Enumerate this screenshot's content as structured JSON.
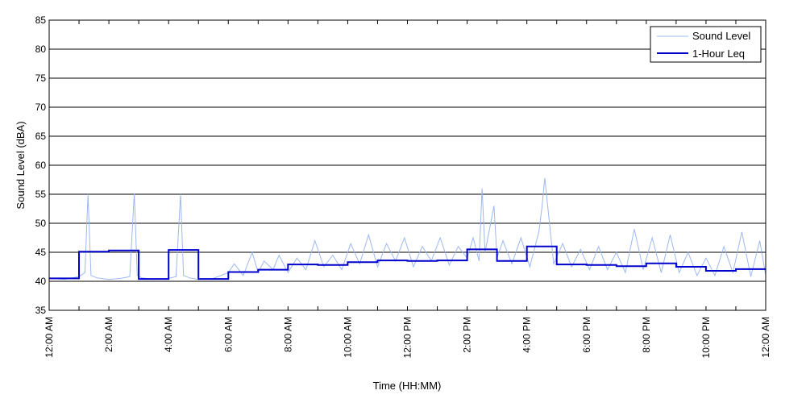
{
  "chart_data": {
    "type": "line",
    "title": "",
    "xlabel": "Time (HH:MM)",
    "ylabel": "Sound Level (dBA)",
    "xlim": [
      0,
      24
    ],
    "ylim": [
      35,
      85
    ],
    "yticks": [
      35,
      40,
      45,
      50,
      55,
      60,
      65,
      70,
      75,
      80,
      85
    ],
    "xticks": [
      0,
      1,
      2,
      3,
      4,
      5,
      6,
      7,
      8,
      9,
      10,
      11,
      12,
      13,
      14,
      15,
      16,
      17,
      18,
      19,
      20,
      21,
      22,
      23,
      24
    ],
    "xtick_labels": [
      "12:00 AM",
      "",
      "2:00 AM",
      "",
      "4:00 AM",
      "",
      "6:00 AM",
      "",
      "8:00 AM",
      "",
      "10:00 AM",
      "",
      "12:00 PM",
      "",
      "2:00 PM",
      "",
      "4:00 PM",
      "",
      "6:00 PM",
      "",
      "8:00 PM",
      "",
      "10:00 PM",
      "",
      "12:00 AM"
    ],
    "grid": "horizontal",
    "legend_position": "top-right",
    "colors": {
      "sound_level": "#9db8f0",
      "leq": "#0000cc"
    },
    "series": [
      {
        "name": "Sound Level",
        "x": [
          0,
          0.5,
          1.0,
          1.2,
          1.3,
          1.4,
          1.6,
          2.0,
          2.4,
          2.7,
          2.85,
          2.95,
          3.1,
          3.5,
          4.0,
          4.25,
          4.4,
          4.5,
          4.7,
          5.0,
          5.5,
          6.0,
          6.2,
          6.5,
          6.8,
          7.0,
          7.2,
          7.5,
          7.7,
          8.0,
          8.3,
          8.6,
          8.9,
          9.2,
          9.5,
          9.8,
          10.1,
          10.4,
          10.7,
          11.0,
          11.3,
          11.6,
          11.9,
          12.2,
          12.5,
          12.8,
          13.1,
          13.4,
          13.7,
          14.0,
          14.2,
          14.4,
          14.5,
          14.6,
          14.9,
          15.0,
          15.2,
          15.5,
          15.8,
          16.1,
          16.4,
          16.5,
          16.6,
          16.9,
          17.2,
          17.5,
          17.8,
          18.1,
          18.4,
          18.7,
          19.0,
          19.3,
          19.6,
          19.9,
          20.2,
          20.5,
          20.8,
          21.1,
          21.4,
          21.7,
          22.0,
          22.3,
          22.6,
          22.9,
          23.2,
          23.5,
          23.8,
          24.0
        ],
        "values": [
          40.6,
          40.3,
          40.8,
          41.5,
          55.0,
          41.0,
          40.6,
          40.3,
          40.5,
          40.8,
          55.2,
          41.0,
          40.6,
          40.3,
          40.5,
          40.8,
          55.0,
          41.0,
          40.6,
          40.3,
          40.5,
          41.5,
          43.0,
          41.0,
          45.0,
          41.5,
          43.5,
          42.0,
          44.5,
          41.5,
          44.0,
          42.0,
          47.0,
          42.5,
          44.5,
          42.0,
          46.5,
          43.0,
          48.0,
          42.5,
          46.5,
          43.5,
          47.5,
          42.5,
          46.0,
          43.5,
          47.5,
          42.8,
          46.0,
          44.0,
          47.5,
          43.5,
          56.0,
          45.0,
          53.0,
          44.0,
          47.0,
          43.0,
          47.5,
          42.5,
          48.5,
          52.5,
          57.8,
          43.0,
          46.5,
          42.5,
          45.5,
          42.0,
          46.0,
          42.0,
          45.0,
          41.5,
          49.0,
          42.0,
          47.5,
          41.5,
          48.0,
          41.5,
          45.0,
          41.0,
          44.0,
          41.0,
          46.0,
          41.5,
          48.5,
          40.8,
          47.0,
          41.0
        ]
      },
      {
        "name": "1-Hour Leq",
        "x": [
          0,
          1,
          2,
          3,
          4,
          5,
          6,
          7,
          8,
          9,
          10,
          11,
          12,
          13,
          14,
          15,
          16,
          17,
          18,
          19,
          20,
          21,
          22,
          23,
          24
        ],
        "values": [
          40.5,
          45.1,
          45.3,
          40.4,
          45.4,
          40.4,
          41.6,
          42.0,
          42.9,
          42.8,
          43.3,
          43.6,
          43.5,
          43.6,
          45.5,
          43.5,
          46.0,
          42.9,
          42.8,
          42.6,
          43.1,
          42.5,
          41.8,
          42.1,
          42.1
        ]
      }
    ]
  }
}
